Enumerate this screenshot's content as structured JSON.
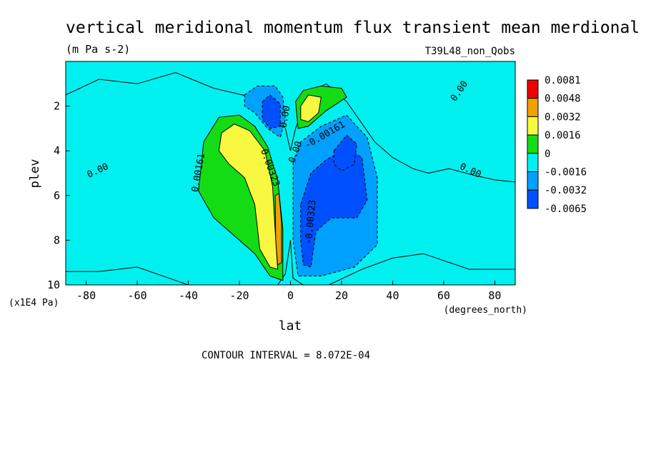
{
  "chart_data": {
    "type": "heatmap",
    "title": "vertical meridional momentum flux transient mean merdional",
    "units": "(m Pa s-2)",
    "run_label": "T39L48_non_Qobs",
    "xlabel": "lat",
    "x_units": "(degrees_north)",
    "ylabel": "plev",
    "y_units": "(x1E4 Pa)",
    "xlim": [
      -88,
      88
    ],
    "ylim": [
      0,
      10
    ],
    "y_inverted": true,
    "x_ticks": [
      -80,
      -60,
      -40,
      -20,
      0,
      20,
      40,
      60,
      80
    ],
    "x_tick_labels": [
      "-80",
      "-60",
      "-40",
      "-20",
      "0",
      "20",
      "40",
      "60",
      "80"
    ],
    "y_ticks": [
      2,
      4,
      6,
      8,
      10
    ],
    "y_tick_labels": [
      "2",
      "4",
      "6",
      "8",
      "10"
    ],
    "contour_interval_text": "CONTOUR INTERVAL = 8.072E-04",
    "colorbar": {
      "labels": [
        "0.0081",
        "0.0048",
        "0.0032",
        "0.0016",
        "0",
        "-0.0016",
        "-0.0032",
        "-0.0065"
      ],
      "colors": [
        "#ee0000",
        "#f0a000",
        "#f8f840",
        "#14dc14",
        "#00f0f0",
        "#00a0ff",
        "#0050ff"
      ]
    },
    "contour_labels": [
      {
        "text": "0.00",
        "lat": -75,
        "plev": 5.0,
        "angle": -25
      },
      {
        "text": "0.00161",
        "lat": -35,
        "plev": 5.0,
        "angle": -80
      },
      {
        "text": "0.00323",
        "lat": -9,
        "plev": 4.8,
        "angle": 70
      },
      {
        "text": "0.00",
        "lat": -1,
        "plev": 2.5,
        "angle": -80
      },
      {
        "text": "0.00",
        "lat": 3,
        "plev": 4.1,
        "angle": -70
      },
      {
        "text": "-0.00161",
        "lat": 14,
        "plev": 3.4,
        "angle": -30
      },
      {
        "text": "-0.00323",
        "lat": 9,
        "plev": 7.2,
        "angle": -85
      },
      {
        "text": "0.00",
        "lat": 70,
        "plev": 5.0,
        "angle": 25
      },
      {
        "text": "0.00",
        "lat": 67,
        "plev": 1.4,
        "angle": -55
      }
    ],
    "regions": [
      {
        "color_index": 4,
        "level": 0,
        "polygon": [
          [
            -88,
            1.5
          ],
          [
            -75,
            0.8
          ],
          [
            -60,
            1.0
          ],
          [
            -45,
            0.5
          ],
          [
            -30,
            1.2
          ],
          [
            -15,
            1.6
          ],
          [
            -8,
            2.0
          ],
          [
            -2,
            3.0
          ],
          [
            0,
            4.0
          ],
          [
            2,
            3.0
          ],
          [
            7,
            1.4
          ],
          [
            14,
            1.0
          ],
          [
            22,
            1.8
          ],
          [
            33,
            3.6
          ],
          [
            40,
            4.3
          ],
          [
            48,
            4.8
          ],
          [
            54,
            5.0
          ],
          [
            62,
            4.8
          ],
          [
            72,
            5.1
          ],
          [
            80,
            5.3
          ],
          [
            88,
            5.4
          ],
          [
            88,
            9.3
          ],
          [
            70,
            9.3
          ],
          [
            52,
            8.6
          ],
          [
            40,
            8.8
          ],
          [
            28,
            9.3
          ],
          [
            15,
            10
          ],
          [
            5,
            10
          ],
          [
            1,
            9.7
          ],
          [
            0,
            8.0
          ],
          [
            -2,
            9.5
          ],
          [
            -5,
            10
          ],
          [
            -40,
            10
          ],
          [
            -60,
            9.2
          ],
          [
            -75,
            9.4
          ],
          [
            -88,
            9.4
          ]
        ]
      },
      {
        "color_index": 3,
        "level": 0.0016,
        "polygon": [
          [
            -34,
            3.6
          ],
          [
            -28,
            2.5
          ],
          [
            -20,
            2.4
          ],
          [
            -14,
            2.9
          ],
          [
            -9,
            3.8
          ],
          [
            -5,
            5.3
          ],
          [
            -3,
            7.5
          ],
          [
            -3,
            9.8
          ],
          [
            -8,
            9.6
          ],
          [
            -14,
            8.6
          ],
          [
            -22,
            7.8
          ],
          [
            -30,
            7.0
          ],
          [
            -36,
            5.8
          ]
        ]
      },
      {
        "color_index": 3,
        "level": 0.0016,
        "polygon": [
          [
            2,
            1.8
          ],
          [
            5,
            1.3
          ],
          [
            12,
            1.1
          ],
          [
            20,
            1.2
          ],
          [
            22,
            1.6
          ],
          [
            14,
            2.2
          ],
          [
            7,
            2.9
          ],
          [
            3,
            3.0
          ]
        ]
      },
      {
        "color_index": 2,
        "level": 0.0032,
        "polygon": [
          [
            -27,
            3.2
          ],
          [
            -22,
            2.8
          ],
          [
            -16,
            3.1
          ],
          [
            -10,
            4.0
          ],
          [
            -7,
            5.6
          ],
          [
            -6,
            7.6
          ],
          [
            -5,
            9.3
          ],
          [
            -8,
            9.2
          ],
          [
            -12,
            8.4
          ],
          [
            -14,
            6.4
          ],
          [
            -18,
            5.2
          ],
          [
            -24,
            4.6
          ],
          [
            -28,
            4.0
          ]
        ]
      },
      {
        "color_index": 2,
        "level": 0.0032,
        "polygon": [
          [
            4,
            2.0
          ],
          [
            7,
            1.5
          ],
          [
            12,
            1.6
          ],
          [
            11,
            2.3
          ],
          [
            7,
            2.7
          ],
          [
            4,
            2.6
          ]
        ]
      },
      {
        "color_index": 1,
        "level": 0.0048,
        "polygon": [
          [
            -6,
            6.0
          ],
          [
            -4.5,
            5.9
          ],
          [
            -3.5,
            7.2
          ],
          [
            -3.5,
            9.0
          ],
          [
            -5,
            9.1
          ],
          [
            -5.8,
            8.0
          ]
        ]
      },
      {
        "color_index": 5,
        "level": -0.0016,
        "polygon": [
          [
            1,
            4.5
          ],
          [
            4,
            3.6
          ],
          [
            12,
            2.9
          ],
          [
            22,
            2.4
          ],
          [
            30,
            3.4
          ],
          [
            34,
            5.2
          ],
          [
            34,
            8.2
          ],
          [
            25,
            9.2
          ],
          [
            12,
            9.6
          ],
          [
            3,
            9.6
          ],
          [
            1,
            8.0
          ]
        ]
      },
      {
        "color_index": 5,
        "level": -0.0016,
        "polygon": [
          [
            -18,
            1.5
          ],
          [
            -13,
            1.1
          ],
          [
            -6,
            1.1
          ],
          [
            -3,
            1.6
          ],
          [
            -2,
            2.6
          ],
          [
            -4,
            3.4
          ],
          [
            -9,
            3.0
          ],
          [
            -14,
            2.3
          ],
          [
            -18,
            2.0
          ]
        ]
      },
      {
        "color_index": 6,
        "level": -0.0032,
        "polygon": [
          [
            4,
            6.4
          ],
          [
            8,
            5.0
          ],
          [
            14,
            4.4
          ],
          [
            22,
            3.9
          ],
          [
            28,
            4.3
          ],
          [
            30,
            6.2
          ],
          [
            26,
            7.0
          ],
          [
            16,
            7.0
          ],
          [
            10,
            7.6
          ],
          [
            8,
            9.2
          ],
          [
            5,
            9.1
          ],
          [
            4,
            8.0
          ]
        ]
      },
      {
        "color_index": 6,
        "level": -0.0032,
        "polygon": [
          [
            -11,
            1.8
          ],
          [
            -8,
            1.5
          ],
          [
            -4,
            1.9
          ],
          [
            -4,
            2.9
          ],
          [
            -8,
            3.0
          ],
          [
            -11,
            2.6
          ]
        ]
      },
      {
        "color_index": 6,
        "level": -0.0032,
        "polygon": [
          [
            17,
            4.0
          ],
          [
            22,
            3.3
          ],
          [
            26,
            3.7
          ],
          [
            25,
            4.6
          ],
          [
            20,
            4.9
          ],
          [
            17,
            4.6
          ]
        ]
      }
    ]
  }
}
